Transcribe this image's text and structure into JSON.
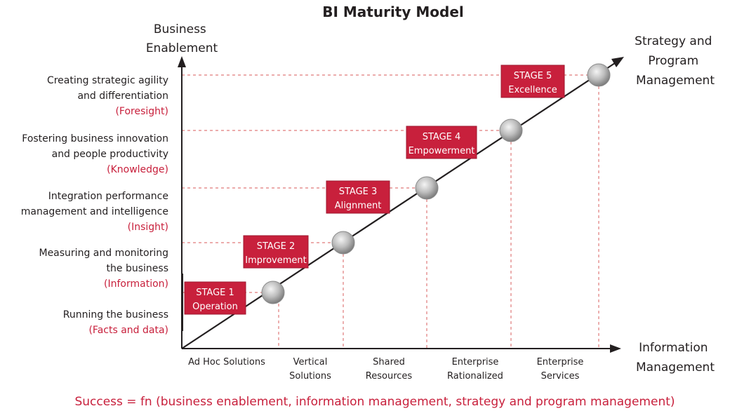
{
  "title": "BI Maturity Model",
  "y_axis": {
    "title": [
      "Business",
      "Enablement"
    ],
    "levels": [
      {
        "lines": [
          "Creating strategic agility",
          "and differentiation"
        ],
        "tag": "(Foresight)"
      },
      {
        "lines": [
          "Fostering business innovation",
          "and people productivity"
        ],
        "tag": "(Knowledge)"
      },
      {
        "lines": [
          "Integration performance",
          "management and intelligence"
        ],
        "tag": "(Insight)"
      },
      {
        "lines": [
          "Measuring and monitoring",
          "the business"
        ],
        "tag": "(Information)"
      },
      {
        "lines": [
          "Running the business"
        ],
        "tag": "(Facts and data)"
      }
    ]
  },
  "x_axis": {
    "title": [
      "Information",
      "Management"
    ],
    "categories": [
      [
        "Ad Hoc Solutions"
      ],
      [
        "Vertical",
        "Solutions"
      ],
      [
        "Shared",
        "Resources"
      ],
      [
        "Enterprise",
        "Rationalized"
      ],
      [
        "Enterprise",
        "Services"
      ]
    ]
  },
  "arrow_label": [
    "Strategy and",
    "Program",
    "Management"
  ],
  "stages": [
    {
      "name": "STAGE 1",
      "label": "Operation"
    },
    {
      "name": "STAGE 2",
      "label": "Improvement"
    },
    {
      "name": "STAGE 3",
      "label": "Alignment"
    },
    {
      "name": "STAGE 4",
      "label": "Empowerment"
    },
    {
      "name": "STAGE 5",
      "label": "Excellence"
    }
  ],
  "formula": "Success = fn (business enablement, information management, strategy and program management)",
  "colors": {
    "accent": "#c8203c",
    "stage_box": "#c8203c",
    "guide_line": "#e07a7a",
    "axis": "#231f20"
  }
}
